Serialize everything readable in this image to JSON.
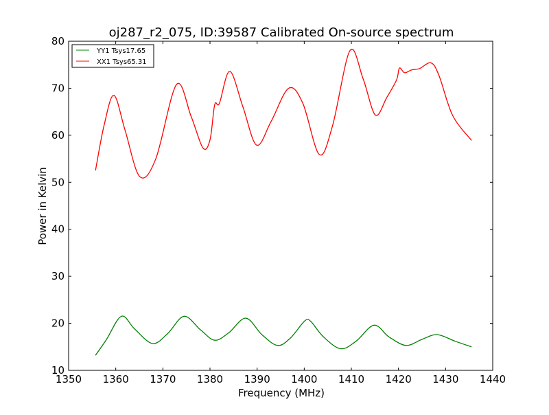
{
  "chart_data": {
    "type": "line",
    "title": "oj287_r2_075, ID:39587 Calibrated On-source spectrum",
    "xlabel": "Frequency (MHz)",
    "ylabel": "Power in Kelvin",
    "xlim": [
      1350,
      1440
    ],
    "ylim": [
      10,
      80
    ],
    "xticks": [
      1350,
      1360,
      1370,
      1380,
      1390,
      1400,
      1410,
      1420,
      1430,
      1440
    ],
    "yticks": [
      10,
      20,
      30,
      40,
      50,
      60,
      70,
      80
    ],
    "legend_position": "top-left",
    "series": [
      {
        "name": "YY1 Tsys17.65",
        "color": "#008000",
        "x": [
          1355.7,
          1358,
          1361.2,
          1364,
          1367.8,
          1371,
          1374.5,
          1378,
          1381,
          1384,
          1387.6,
          1391,
          1394.3,
          1397,
          1400.1,
          1401.4,
          1404,
          1407.7,
          1411,
          1414.8,
          1418,
          1421.6,
          1425,
          1428.2,
          1432,
          1435.5
        ],
        "y": [
          13.2,
          16.5,
          21.5,
          18.8,
          15.7,
          17.8,
          21.5,
          18.6,
          16.4,
          18,
          21.1,
          17.6,
          15.3,
          16.8,
          20.5,
          20.4,
          17.2,
          14.6,
          16.2,
          19.6,
          17.1,
          15.3,
          16.6,
          17.6,
          16.2,
          15.0
        ]
      },
      {
        "name": "XX1 Tsys65.31",
        "color": "#ff0000",
        "x": [
          1355.7,
          1357.5,
          1359.6,
          1362,
          1365.1,
          1368.5,
          1372.9,
          1376,
          1378.5,
          1380,
          1381,
          1382,
          1384.2,
          1387,
          1389.9,
          1393,
          1396.7,
          1399.7,
          1403.2,
          1406,
          1409.7,
          1412.5,
          1415.1,
          1417.5,
          1419.6,
          1420.2,
          1421.3,
          1422.8,
          1424.5,
          1426.9,
          1428.6,
          1431.5,
          1435.5
        ],
        "y": [
          52.5,
          62,
          68.5,
          61,
          51.2,
          55,
          70.8,
          64,
          57.3,
          59,
          66.5,
          66.8,
          73.6,
          66,
          57.9,
          63,
          70,
          66.8,
          55.9,
          62,
          78,
          72,
          64.3,
          68,
          71.8,
          74.3,
          73.3,
          73.9,
          74.2,
          75.4,
          72.7,
          64.2,
          58.9
        ]
      }
    ]
  }
}
